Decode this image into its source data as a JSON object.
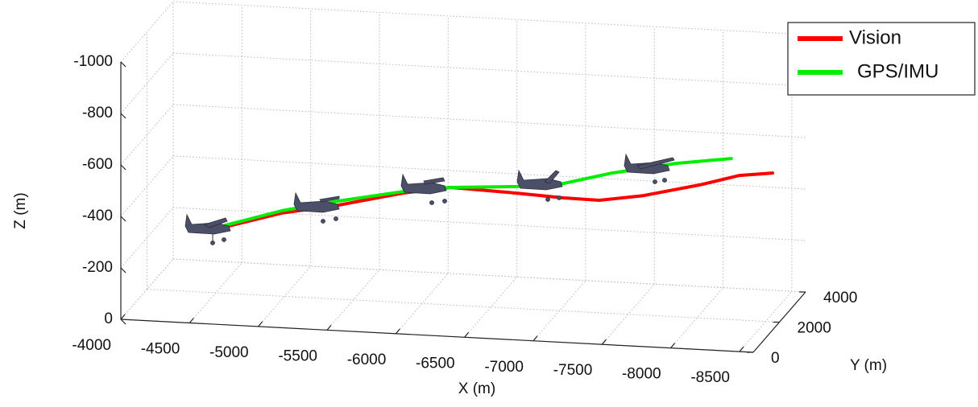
{
  "chart_data": {
    "type": "line3d",
    "xlabel": "X (m)",
    "ylabel": "Y (m)",
    "zlabel": "Z (m)",
    "xlim": [
      -4000,
      -8600
    ],
    "ylim": [
      0,
      4000
    ],
    "zlim": [
      0,
      -1000
    ],
    "xticks": [
      -4000,
      -4500,
      -5000,
      -5500,
      -6000,
      -6500,
      -7000,
      -7500,
      -8000,
      -8500
    ],
    "yticks": [
      0,
      2000,
      4000
    ],
    "zticks": [
      0,
      -200,
      -400,
      -600,
      -800,
      -1000
    ],
    "grid": true,
    "legend": "upper right",
    "series": [
      {
        "name": "Vision",
        "color": "#ff0000",
        "x": [
          -4570,
          -4980,
          -5390,
          -5860,
          -6210,
          -6680,
          -7030,
          -7290,
          -7610,
          -8020,
          -8310,
          -8550
        ],
        "y": [
          2000,
          2000,
          2000,
          2000,
          2000,
          2000,
          2000,
          2000,
          2000,
          2000,
          2000,
          2000
        ],
        "z": [
          -258,
          -323,
          -365,
          -425,
          -457,
          -448,
          -439,
          -437,
          -464,
          -517,
          -562,
          -578
        ]
      },
      {
        "name": "GPS/IMU",
        "color": "#00ee00",
        "x": [
          -4570,
          -4980,
          -5390,
          -5860,
          -6210,
          -6680,
          -7030,
          -7380,
          -7850,
          -8250
        ],
        "y": [
          2000,
          2000,
          2000,
          2000,
          2000,
          2000,
          2000,
          2000,
          2000,
          2000
        ],
        "z": [
          -264,
          -332,
          -381,
          -431,
          -457,
          -473,
          -495,
          -545,
          -596,
          -626
        ]
      }
    ]
  }
}
